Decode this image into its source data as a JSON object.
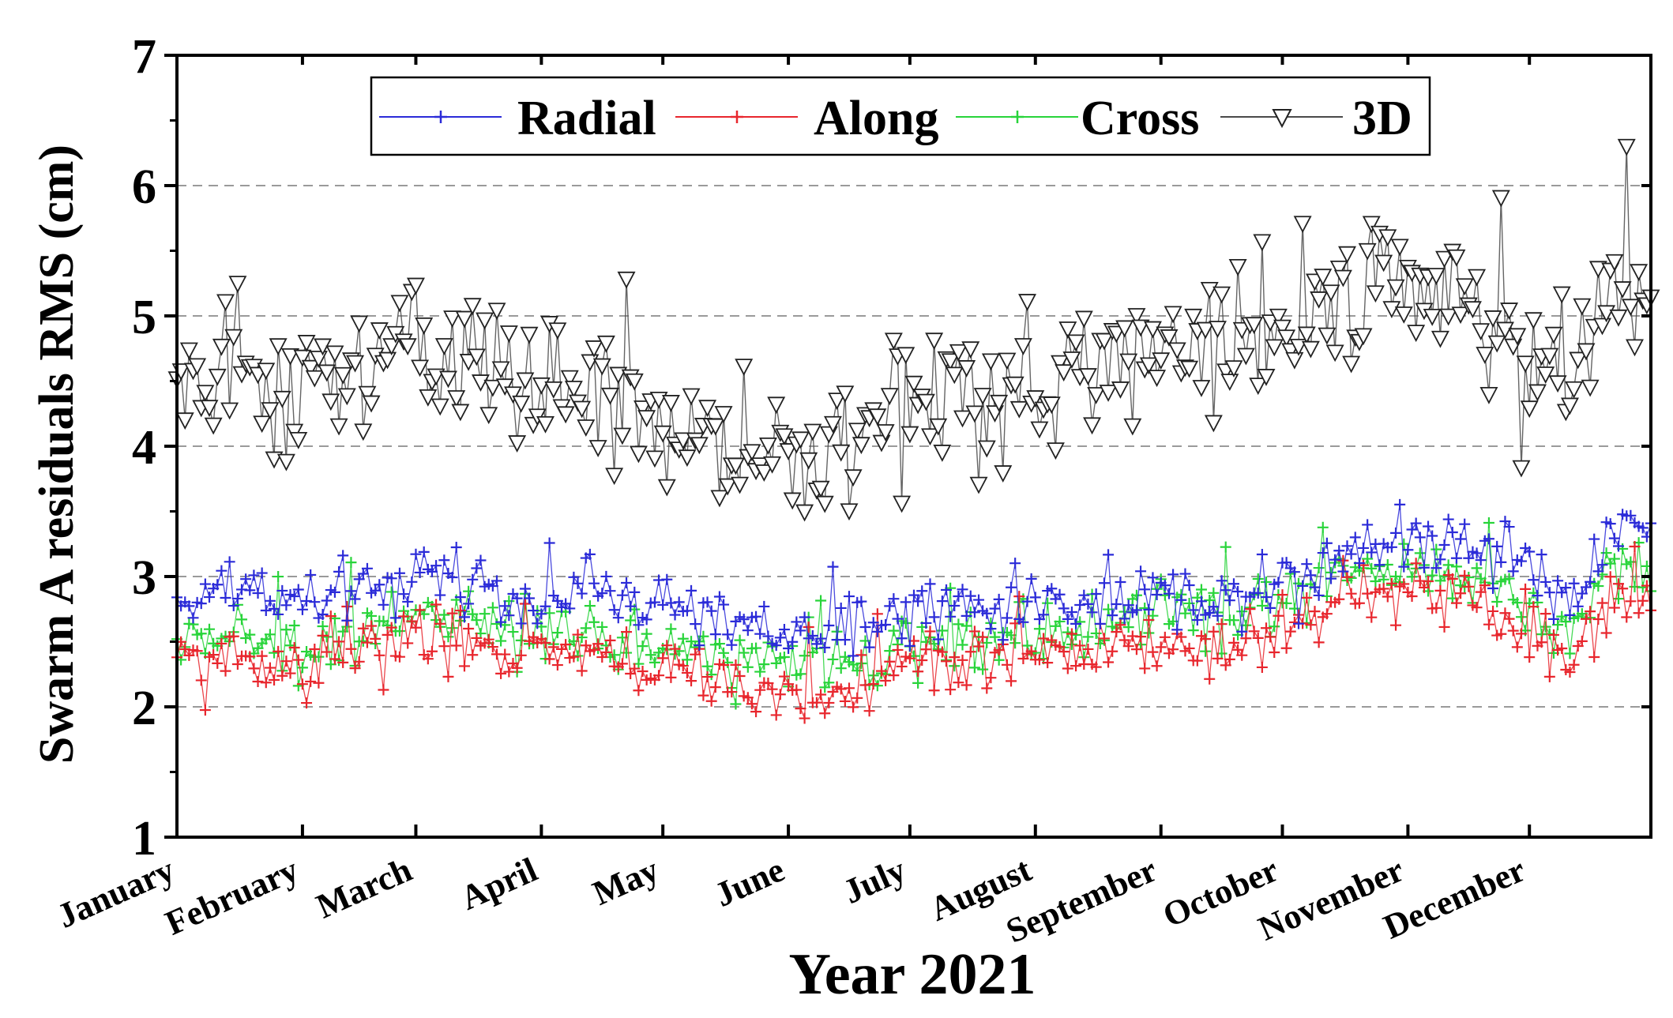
{
  "chart_data": {
    "type": "line",
    "title": "",
    "xlabel": "Year 2021",
    "ylabel": "Swarm A residuals RMS (cm)",
    "xlim": [
      1,
      365
    ],
    "ylim": [
      1,
      7
    ],
    "yticks": [
      1,
      2,
      3,
      4,
      5,
      6,
      7
    ],
    "grid_y": [
      2,
      3,
      4,
      5,
      6
    ],
    "months": [
      {
        "label": "January",
        "day": 1
      },
      {
        "label": "February",
        "day": 32
      },
      {
        "label": "March",
        "day": 60
      },
      {
        "label": "April",
        "day": 91
      },
      {
        "label": "May",
        "day": 121
      },
      {
        "label": "June",
        "day": 152
      },
      {
        "label": "July",
        "day": 182
      },
      {
        "label": "August",
        "day": 213
      },
      {
        "label": "September",
        "day": 244
      },
      {
        "label": "October",
        "day": 274
      },
      {
        "label": "November",
        "day": 305
      },
      {
        "label": "December",
        "day": 335
      }
    ],
    "legend_position": "top",
    "series": [
      {
        "name": "Radial",
        "color": "#2b2bd8",
        "marker": "plus",
        "anchors": [
          [
            1,
            2.8
          ],
          [
            15,
            2.95
          ],
          [
            31,
            2.8
          ],
          [
            45,
            2.85
          ],
          [
            59,
            3.0
          ],
          [
            74,
            3.0
          ],
          [
            90,
            2.75
          ],
          [
            105,
            2.9
          ],
          [
            120,
            2.75
          ],
          [
            135,
            2.65
          ],
          [
            151,
            2.55
          ],
          [
            166,
            2.55
          ],
          [
            181,
            2.75
          ],
          [
            196,
            2.75
          ],
          [
            212,
            2.8
          ],
          [
            227,
            2.8
          ],
          [
            243,
            2.9
          ],
          [
            258,
            2.85
          ],
          [
            273,
            2.95
          ],
          [
            288,
            3.2
          ],
          [
            304,
            3.3
          ],
          [
            319,
            3.3
          ],
          [
            334,
            3.1
          ],
          [
            345,
            2.85
          ],
          [
            356,
            3.35
          ],
          [
            365,
            3.3
          ]
        ]
      },
      {
        "name": "Along",
        "color": "#e8262d",
        "marker": "plus",
        "anchors": [
          [
            1,
            2.35
          ],
          [
            15,
            2.4
          ],
          [
            31,
            2.3
          ],
          [
            45,
            2.45
          ],
          [
            59,
            2.55
          ],
          [
            74,
            2.5
          ],
          [
            90,
            2.4
          ],
          [
            105,
            2.35
          ],
          [
            120,
            2.3
          ],
          [
            135,
            2.2
          ],
          [
            151,
            2.05
          ],
          [
            166,
            2.15
          ],
          [
            181,
            2.3
          ],
          [
            196,
            2.35
          ],
          [
            212,
            2.4
          ],
          [
            227,
            2.45
          ],
          [
            243,
            2.5
          ],
          [
            258,
            2.45
          ],
          [
            273,
            2.55
          ],
          [
            288,
            2.85
          ],
          [
            304,
            2.9
          ],
          [
            319,
            2.85
          ],
          [
            334,
            2.6
          ],
          [
            345,
            2.35
          ],
          [
            356,
            2.85
          ],
          [
            365,
            2.8
          ]
        ]
      },
      {
        "name": "Cross",
        "color": "#28d43a",
        "marker": "plus",
        "anchors": [
          [
            1,
            2.5
          ],
          [
            15,
            2.55
          ],
          [
            31,
            2.45
          ],
          [
            45,
            2.6
          ],
          [
            59,
            2.7
          ],
          [
            74,
            2.65
          ],
          [
            90,
            2.5
          ],
          [
            105,
            2.55
          ],
          [
            120,
            2.5
          ],
          [
            135,
            2.4
          ],
          [
            151,
            2.3
          ],
          [
            166,
            2.35
          ],
          [
            181,
            2.45
          ],
          [
            196,
            2.5
          ],
          [
            212,
            2.55
          ],
          [
            227,
            2.6
          ],
          [
            243,
            2.75
          ],
          [
            258,
            2.7
          ],
          [
            273,
            2.8
          ],
          [
            288,
            3.05
          ],
          [
            304,
            3.05
          ],
          [
            319,
            3.0
          ],
          [
            334,
            2.8
          ],
          [
            345,
            2.55
          ],
          [
            356,
            3.1
          ],
          [
            365,
            3.0
          ]
        ]
      },
      {
        "name": "3D",
        "color": "#4a4a4a",
        "marker": "triangle-down",
        "anchors": [
          [
            1,
            4.5
          ],
          [
            15,
            4.45
          ],
          [
            31,
            4.35
          ],
          [
            45,
            4.5
          ],
          [
            59,
            4.75
          ],
          [
            74,
            4.7
          ],
          [
            90,
            4.4
          ],
          [
            105,
            4.35
          ],
          [
            120,
            4.25
          ],
          [
            135,
            4.0
          ],
          [
            151,
            3.9
          ],
          [
            166,
            4.1
          ],
          [
            181,
            4.3
          ],
          [
            196,
            4.35
          ],
          [
            212,
            4.3
          ],
          [
            227,
            4.6
          ],
          [
            243,
            4.7
          ],
          [
            258,
            4.75
          ],
          [
            273,
            4.85
          ],
          [
            288,
            5.25
          ],
          [
            304,
            5.3
          ],
          [
            319,
            5.1
          ],
          [
            334,
            4.75
          ],
          [
            345,
            4.4
          ],
          [
            356,
            5.45
          ],
          [
            365,
            5.1
          ]
        ]
      }
    ]
  }
}
